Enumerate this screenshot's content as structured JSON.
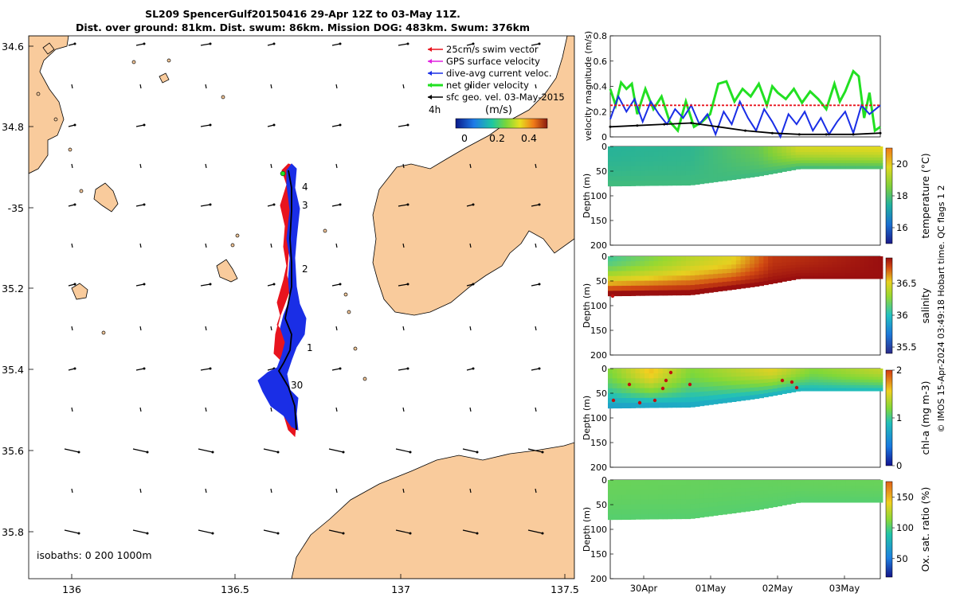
{
  "title": {
    "line1": "SL209 SpencerGulf20150416 29-Apr 12Z to 03-May 11Z.",
    "line2": "Dist. over ground: 81km. Dist. swum: 86km. Mission DOG: 483km. Swum: 376km"
  },
  "map": {
    "lon_ticks": [
      "136",
      "136.5",
      "137",
      "137.5"
    ],
    "lat_ticks": [
      "34.6",
      "34.8",
      "-35",
      "35.2",
      "35.4",
      "35.6",
      "35.8"
    ],
    "track_day_labels": [
      "4",
      "3",
      "2",
      "1",
      "30"
    ],
    "isobaths": "isobaths: 0   200  1000m",
    "legend": [
      {
        "label": "25cm/s swim vector",
        "color": "#e8141e"
      },
      {
        "label": "GPS surface velocity",
        "color": "#e020e0"
      },
      {
        "label": "dive-avg current veloc.",
        "color": "#1a2ee6"
      },
      {
        "label": "net glider velocity",
        "color": "#22e022"
      },
      {
        "label": "sfc geo. vel. 03-May-2015",
        "color": "#000000"
      }
    ],
    "legend_4h": "4h",
    "colorbar_label": "(m/s)",
    "colorbar_ticks": [
      "0",
      "0.2",
      "0.4"
    ],
    "land_color": "#f9cb9c",
    "track_colors": {
      "swim": "#e8141e",
      "current": "#1a2ee6"
    }
  },
  "chart_data": [
    {
      "type": "line",
      "title": "",
      "ylabel": "velocity magnitude (m/s)",
      "ylim": [
        0,
        0.8
      ],
      "yticks": [
        "0",
        "0.2",
        "0.4",
        "0.6",
        "0.8"
      ],
      "x_range": [
        0,
        1
      ],
      "series": [
        {
          "name": "net glider velocity",
          "color": "#22e022",
          "x": [
            0,
            0.02,
            0.04,
            0.06,
            0.08,
            0.1,
            0.13,
            0.16,
            0.19,
            0.22,
            0.25,
            0.28,
            0.31,
            0.34,
            0.37,
            0.4,
            0.43,
            0.46,
            0.49,
            0.52,
            0.55,
            0.58,
            0.6,
            0.62,
            0.65,
            0.68,
            0.71,
            0.74,
            0.77,
            0.8,
            0.83,
            0.85,
            0.87,
            0.9,
            0.92,
            0.94,
            0.96,
            0.98,
            1.0
          ],
          "values": [
            0.38,
            0.25,
            0.43,
            0.38,
            0.42,
            0.18,
            0.38,
            0.22,
            0.32,
            0.12,
            0.05,
            0.28,
            0.08,
            0.12,
            0.18,
            0.42,
            0.44,
            0.28,
            0.38,
            0.32,
            0.42,
            0.25,
            0.4,
            0.35,
            0.3,
            0.38,
            0.27,
            0.36,
            0.3,
            0.22,
            0.42,
            0.28,
            0.36,
            0.52,
            0.48,
            0.15,
            0.35,
            0.05,
            0.08
          ]
        },
        {
          "name": "dive-avg current veloc.",
          "color": "#1a2ee6",
          "x": [
            0,
            0.03,
            0.06,
            0.09,
            0.12,
            0.15,
            0.18,
            0.21,
            0.24,
            0.27,
            0.3,
            0.33,
            0.36,
            0.39,
            0.42,
            0.45,
            0.48,
            0.51,
            0.54,
            0.57,
            0.6,
            0.63,
            0.66,
            0.69,
            0.72,
            0.75,
            0.78,
            0.81,
            0.84,
            0.87,
            0.9,
            0.93,
            0.96,
            1.0
          ],
          "values": [
            0.14,
            0.32,
            0.2,
            0.3,
            0.12,
            0.28,
            0.18,
            0.1,
            0.22,
            0.15,
            0.25,
            0.1,
            0.18,
            0.02,
            0.2,
            0.1,
            0.28,
            0.15,
            0.05,
            0.22,
            0.12,
            0.0,
            0.18,
            0.1,
            0.2,
            0.05,
            0.15,
            0.02,
            0.12,
            0.2,
            0.03,
            0.25,
            0.18,
            0.25
          ]
        },
        {
          "name": "25cm/s swim vector",
          "color": "#e8141e",
          "x": [
            0,
            1
          ],
          "values": [
            0.25,
            0.25
          ]
        },
        {
          "name": "sfc geo. vel.",
          "color": "#000000",
          "x": [
            0,
            0.1,
            0.2,
            0.3,
            0.4,
            0.5,
            0.6,
            0.7,
            0.8,
            0.9,
            1.0
          ],
          "values": [
            0.08,
            0.09,
            0.1,
            0.11,
            0.08,
            0.05,
            0.03,
            0.02,
            0.02,
            0.02,
            0.03
          ]
        }
      ]
    },
    {
      "type": "heatmap",
      "ylabel": "Depth (m)",
      "ylim": [
        0,
        200
      ],
      "yticks": [
        "0",
        "50",
        "100",
        "150",
        "200"
      ],
      "colorbar_label": "temperature (°C)",
      "cbar_range": [
        15,
        21
      ],
      "cbar_ticks": [
        "16",
        "18",
        "20"
      ],
      "x_dates": [
        "30Apr",
        "01May",
        "02May",
        "03May"
      ],
      "surface": [
        {
          "t": 0,
          "v": 17.5
        },
        {
          "t": 0.3,
          "v": 17.6
        },
        {
          "t": 0.55,
          "v": 18.3
        },
        {
          "t": 0.7,
          "v": 19.6
        },
        {
          "t": 1,
          "v": 19.8
        }
      ],
      "bottom": [
        {
          "t": 0,
          "v": 17.8
        },
        {
          "t": 0.5,
          "v": 17.8
        },
        {
          "t": 1,
          "v": 18.0
        }
      ],
      "bottom_depth": [
        {
          "t": 0,
          "d": 80
        },
        {
          "t": 0.3,
          "d": 78
        },
        {
          "t": 0.55,
          "d": 60
        },
        {
          "t": 0.7,
          "d": 45
        },
        {
          "t": 1,
          "d": 45
        }
      ]
    },
    {
      "type": "heatmap",
      "ylabel": "Depth (m)",
      "ylim": [
        0,
        200
      ],
      "yticks": [
        "0",
        "50",
        "100",
        "150",
        "200"
      ],
      "colorbar_label": "salinity",
      "cbar_range": [
        35.4,
        36.9
      ],
      "cbar_ticks": [
        "35.5",
        "36",
        "36.5"
      ],
      "x_dates": [
        "30Apr",
        "01May",
        "02May",
        "03May"
      ],
      "surface": [
        {
          "t": 0,
          "v": 36.1
        },
        {
          "t": 0.3,
          "v": 36.4
        },
        {
          "t": 0.45,
          "v": 36.5
        },
        {
          "t": 0.6,
          "v": 36.8
        },
        {
          "t": 1,
          "v": 36.9
        }
      ],
      "bottom": [
        {
          "t": 0,
          "v": 36.9
        },
        {
          "t": 0.5,
          "v": 36.9
        },
        {
          "t": 1,
          "v": 36.9
        }
      ],
      "bottom_depth": [
        {
          "t": 0,
          "d": 80
        },
        {
          "t": 0.3,
          "d": 78
        },
        {
          "t": 0.55,
          "d": 60
        },
        {
          "t": 0.7,
          "d": 45
        },
        {
          "t": 1,
          "d": 45
        }
      ]
    },
    {
      "type": "heatmap",
      "ylabel": "Depth (m)",
      "ylim": [
        0,
        200
      ],
      "yticks": [
        "0",
        "50",
        "100",
        "150",
        "200"
      ],
      "colorbar_label": "chl-a (mg m-3)",
      "cbar_range": [
        0,
        2
      ],
      "cbar_ticks": [
        "0",
        "1",
        "2"
      ],
      "x_dates": [
        "30Apr",
        "01May",
        "02May",
        "03May"
      ],
      "surface": [
        {
          "t": 0,
          "v": 1.2
        },
        {
          "t": 0.15,
          "v": 1.6
        },
        {
          "t": 0.3,
          "v": 1.2
        },
        {
          "t": 0.6,
          "v": 1.5
        },
        {
          "t": 0.75,
          "v": 1.2
        },
        {
          "t": 1,
          "v": 1.4
        }
      ],
      "bottom": [
        {
          "t": 0,
          "v": 0.7
        },
        {
          "t": 0.5,
          "v": 0.8
        },
        {
          "t": 1,
          "v": 0.9
        }
      ],
      "bottom_depth": [
        {
          "t": 0,
          "d": 80
        },
        {
          "t": 0.3,
          "d": 78
        },
        {
          "t": 0.55,
          "d": 60
        },
        {
          "t": 0.7,
          "d": 45
        },
        {
          "t": 1,
          "d": 45
        }
      ]
    },
    {
      "type": "heatmap",
      "ylabel": "Depth (m)",
      "ylim": [
        0,
        200
      ],
      "yticks": [
        "0",
        "50",
        "100",
        "150",
        "200"
      ],
      "colorbar_label": "Ox. sat. ratio (%)",
      "cbar_range": [
        20,
        175
      ],
      "cbar_ticks": [
        "50",
        "100",
        "150"
      ],
      "x_dates": [
        "30Apr",
        "01May",
        "02May",
        "03May"
      ],
      "surface": [
        {
          "t": 0,
          "v": 106
        },
        {
          "t": 0.5,
          "v": 105
        },
        {
          "t": 1,
          "v": 106
        }
      ],
      "bottom": [
        {
          "t": 0,
          "v": 102
        },
        {
          "t": 0.5,
          "v": 102
        },
        {
          "t": 1,
          "v": 102
        }
      ],
      "bottom_depth": [
        {
          "t": 0,
          "d": 80
        },
        {
          "t": 0.3,
          "d": 78
        },
        {
          "t": 0.55,
          "d": 60
        },
        {
          "t": 0.7,
          "d": 45
        },
        {
          "t": 1,
          "d": 45
        }
      ]
    }
  ],
  "credit": "© IMOS 15-Apr-2024 03:49:18 Hobart time. QC flags 1  2"
}
